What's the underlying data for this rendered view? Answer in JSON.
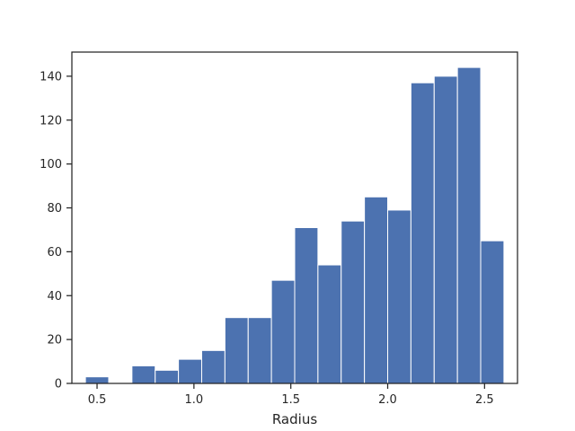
{
  "chart_data": {
    "type": "bar",
    "subtype": "histogram",
    "title": "",
    "xlabel": "Radius",
    "ylabel": "",
    "xlim": [
      0.37,
      2.67
    ],
    "ylim": [
      0,
      151
    ],
    "grid": false,
    "bar_color": "#4c72b0",
    "bar_edge_color": "#ffffff",
    "bins": [
      {
        "x0": 0.44,
        "x1": 0.56,
        "count": 3
      },
      {
        "x0": 0.56,
        "x1": 0.68,
        "count": 0
      },
      {
        "x0": 0.68,
        "x1": 0.8,
        "count": 8
      },
      {
        "x0": 0.8,
        "x1": 0.92,
        "count": 6
      },
      {
        "x0": 0.92,
        "x1": 1.04,
        "count": 11
      },
      {
        "x0": 1.04,
        "x1": 1.16,
        "count": 15
      },
      {
        "x0": 1.16,
        "x1": 1.28,
        "count": 30
      },
      {
        "x0": 1.28,
        "x1": 1.4,
        "count": 30
      },
      {
        "x0": 1.4,
        "x1": 1.52,
        "count": 47
      },
      {
        "x0": 1.52,
        "x1": 1.64,
        "count": 71
      },
      {
        "x0": 1.64,
        "x1": 1.76,
        "count": 54
      },
      {
        "x0": 1.76,
        "x1": 1.88,
        "count": 74
      },
      {
        "x0": 1.88,
        "x1": 2.0,
        "count": 85
      },
      {
        "x0": 2.0,
        "x1": 2.12,
        "count": 79
      },
      {
        "x0": 2.12,
        "x1": 2.24,
        "count": 137
      },
      {
        "x0": 2.24,
        "x1": 2.36,
        "count": 140
      },
      {
        "x0": 2.36,
        "x1": 2.48,
        "count": 144
      },
      {
        "x0": 2.48,
        "x1": 2.6,
        "count": 65
      }
    ],
    "x_ticks": [
      0.5,
      1.0,
      1.5,
      2.0,
      2.5
    ],
    "x_tick_labels": [
      "0.5",
      "1.0",
      "1.5",
      "2.0",
      "2.5"
    ],
    "y_ticks": [
      0,
      20,
      40,
      60,
      80,
      100,
      120,
      140
    ],
    "y_tick_labels": [
      "0",
      "20",
      "40",
      "60",
      "80",
      "100",
      "120",
      "140"
    ]
  }
}
